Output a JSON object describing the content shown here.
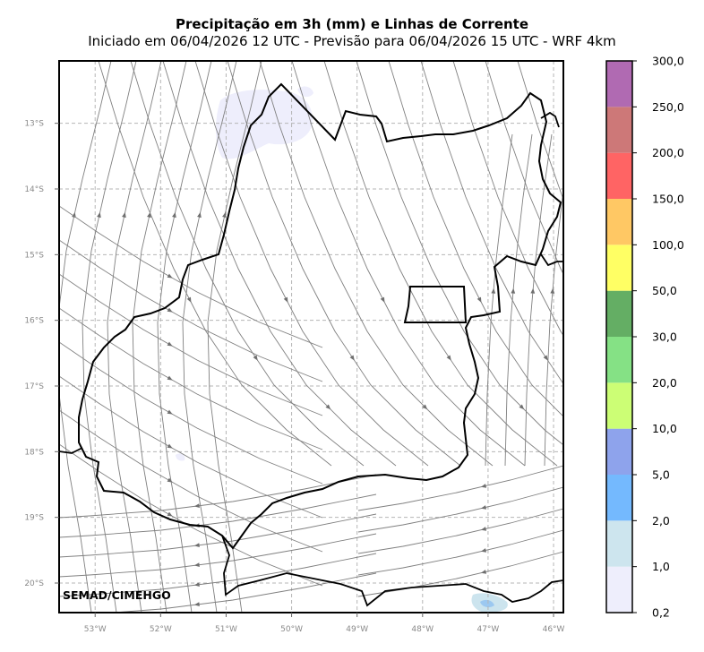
{
  "title": "Precipitação em 3h (mm) e Linhas de Corrente",
  "subtitle": "Iniciado em 06/04/2026 12 UTC - Previsão para 06/04/2026 15 UTC - WRF 4km",
  "credit": "SEMAD/CIMEHGO",
  "map": {
    "lon_range": [
      -53.55,
      -45.85
    ],
    "lat_range": [
      -20.45,
      -12.05
    ],
    "lon_ticks": [
      {
        "value": -53,
        "label": "53°W"
      },
      {
        "value": -52,
        "label": "52°W"
      },
      {
        "value": -51,
        "label": "51°W"
      },
      {
        "value": -50,
        "label": "50°W"
      },
      {
        "value": -49,
        "label": "49°W"
      },
      {
        "value": -48,
        "label": "48°W"
      },
      {
        "value": -47,
        "label": "47°W"
      },
      {
        "value": -46,
        "label": "46°W"
      }
    ],
    "lat_ticks": [
      {
        "value": -13,
        "label": "13°S"
      },
      {
        "value": -14,
        "label": "14°S"
      },
      {
        "value": -15,
        "label": "15°S"
      },
      {
        "value": -16,
        "label": "16°S"
      },
      {
        "value": -17,
        "label": "17°S"
      },
      {
        "value": -18,
        "label": "18°S"
      },
      {
        "value": -19,
        "label": "19°S"
      },
      {
        "value": -20,
        "label": "20°S"
      }
    ],
    "grid": true,
    "state_border_color": "#000000",
    "streamline_color": "#808080",
    "precip_areas": [
      {
        "name": "precip-north-cluster",
        "class": "0,2-1,0",
        "color": "#eeeefc"
      },
      {
        "name": "precip-southeast-corner",
        "class": "1,0-2,0",
        "color": "#cce4ee"
      }
    ]
  },
  "colorbar": {
    "labels": [
      "0,2",
      "1,0",
      "2,0",
      "5,0",
      "10,0",
      "20,0",
      "30,0",
      "50,0",
      "100,0",
      "150,0",
      "200,0",
      "250,0",
      "300,0"
    ],
    "colors": [
      "#eeeefc",
      "#cde5ee",
      "#74b9fe",
      "#8ea3ec",
      "#ccfe75",
      "#85e185",
      "#64ae64",
      "#ffff64",
      "#ffc864",
      "#ff6464",
      "#cd7878",
      "#b06ab2"
    ]
  }
}
